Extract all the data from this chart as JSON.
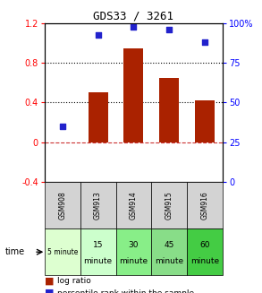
{
  "title": "GDS33 / 3261",
  "samples": [
    "GSM908",
    "GSM913",
    "GSM914",
    "GSM915",
    "GSM916"
  ],
  "time_labels_row1": [
    "",
    "15",
    "30",
    "45",
    "60"
  ],
  "time_labels_row2": [
    "5 minute",
    "minute",
    "minute",
    "minute",
    "minute"
  ],
  "time_colors": [
    "#ddffd0",
    "#ccffcc",
    "#88ee88",
    "#88dd88",
    "#44cc44"
  ],
  "log_ratio": [
    0.0,
    0.5,
    0.95,
    0.65,
    0.42
  ],
  "percentile_rank": [
    35,
    93,
    98,
    96,
    88
  ],
  "bar_color": "#aa2200",
  "dot_color": "#2222cc",
  "left_ylim": [
    -0.4,
    1.2
  ],
  "right_ylim": [
    0,
    100
  ],
  "left_yticks": [
    -0.4,
    0.0,
    0.4,
    0.8,
    1.2
  ],
  "right_yticks": [
    0,
    25,
    50,
    75,
    100
  ],
  "right_yticklabels": [
    "0",
    "25",
    "50",
    "75",
    "100%"
  ],
  "hlines": [
    0.4,
    0.8
  ],
  "zero_line": 0.0,
  "background_color": "#ffffff"
}
